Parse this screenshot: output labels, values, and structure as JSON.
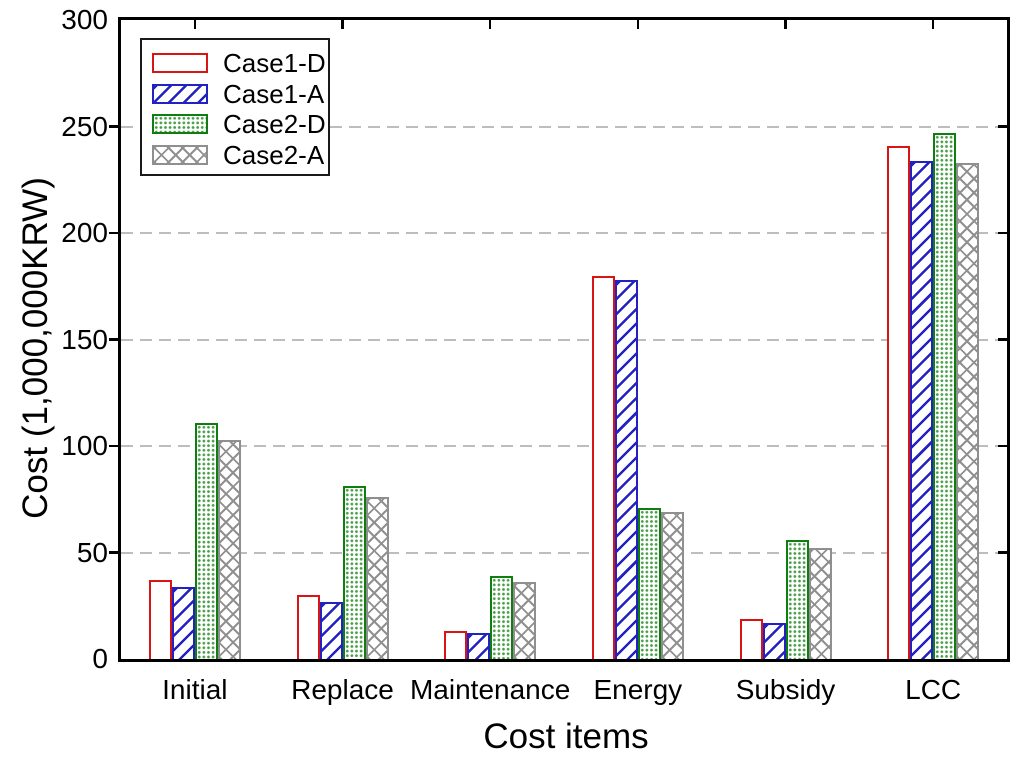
{
  "chart_data": {
    "type": "bar",
    "title": "",
    "xlabel": "Cost items",
    "ylabel": "Cost (1,000,000KRW)",
    "categories": [
      "Initial",
      "Replace",
      "Maintenance",
      "Energy",
      "Subsidy",
      "LCC"
    ],
    "series": [
      {
        "name": "Case1-D",
        "pattern": "none",
        "color": "#d91414",
        "pattern_color": "#d91414",
        "values": [
          37,
          30,
          13,
          180,
          19,
          241
        ]
      },
      {
        "name": "Case1-A",
        "pattern": "diagonal-hatch",
        "color": "#2222c2",
        "pattern_color": "#2222c2",
        "values": [
          34,
          27,
          12,
          178,
          17,
          234
        ]
      },
      {
        "name": "Case2-D",
        "pattern": "dot-fill",
        "color": "#0f7d0f",
        "pattern_color": "#4aa04a",
        "values": [
          111,
          81,
          39,
          71,
          56,
          247
        ]
      },
      {
        "name": "Case2-A",
        "pattern": "cross-hatch",
        "color": "#8f8f8f",
        "pattern_color": "#909090",
        "values": [
          103,
          76,
          36,
          69,
          52,
          233
        ]
      }
    ],
    "ylim": [
      0,
      300
    ],
    "ytick_step": 50,
    "grid": "horizontal-dashed",
    "gridline_color": "#bdbdbd",
    "legend_position": "top-left",
    "background": "#ffffff"
  }
}
